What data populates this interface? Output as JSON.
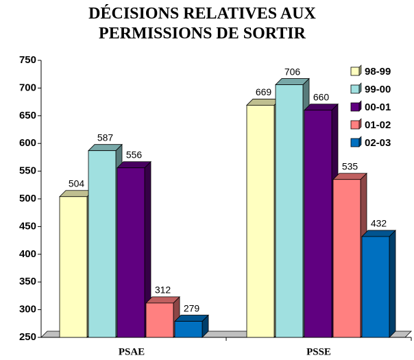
{
  "chart_data": {
    "type": "bar3d",
    "title": "DÉCISIONS RELATIVES AUX PERMISSIONS DE SORTIR",
    "categories": [
      "PSAE",
      "PSSE"
    ],
    "series": [
      {
        "name": "98-99",
        "color": "#ffffc0",
        "values": [
          504,
          669
        ]
      },
      {
        "name": "99-00",
        "color": "#a0e0e0",
        "values": [
          587,
          706
        ]
      },
      {
        "name": "00-01",
        "color": "#600080",
        "values": [
          556,
          660
        ]
      },
      {
        "name": "01-02",
        "color": "#ff8080",
        "values": [
          312,
          535
        ]
      },
      {
        "name": "02-03",
        "color": "#0070c0",
        "values": [
          279,
          432
        ]
      }
    ],
    "ylim": [
      250,
      750
    ],
    "yticks": [
      250,
      300,
      350,
      400,
      450,
      500,
      550,
      600,
      650,
      700,
      750
    ],
    "legend": "top-right"
  }
}
